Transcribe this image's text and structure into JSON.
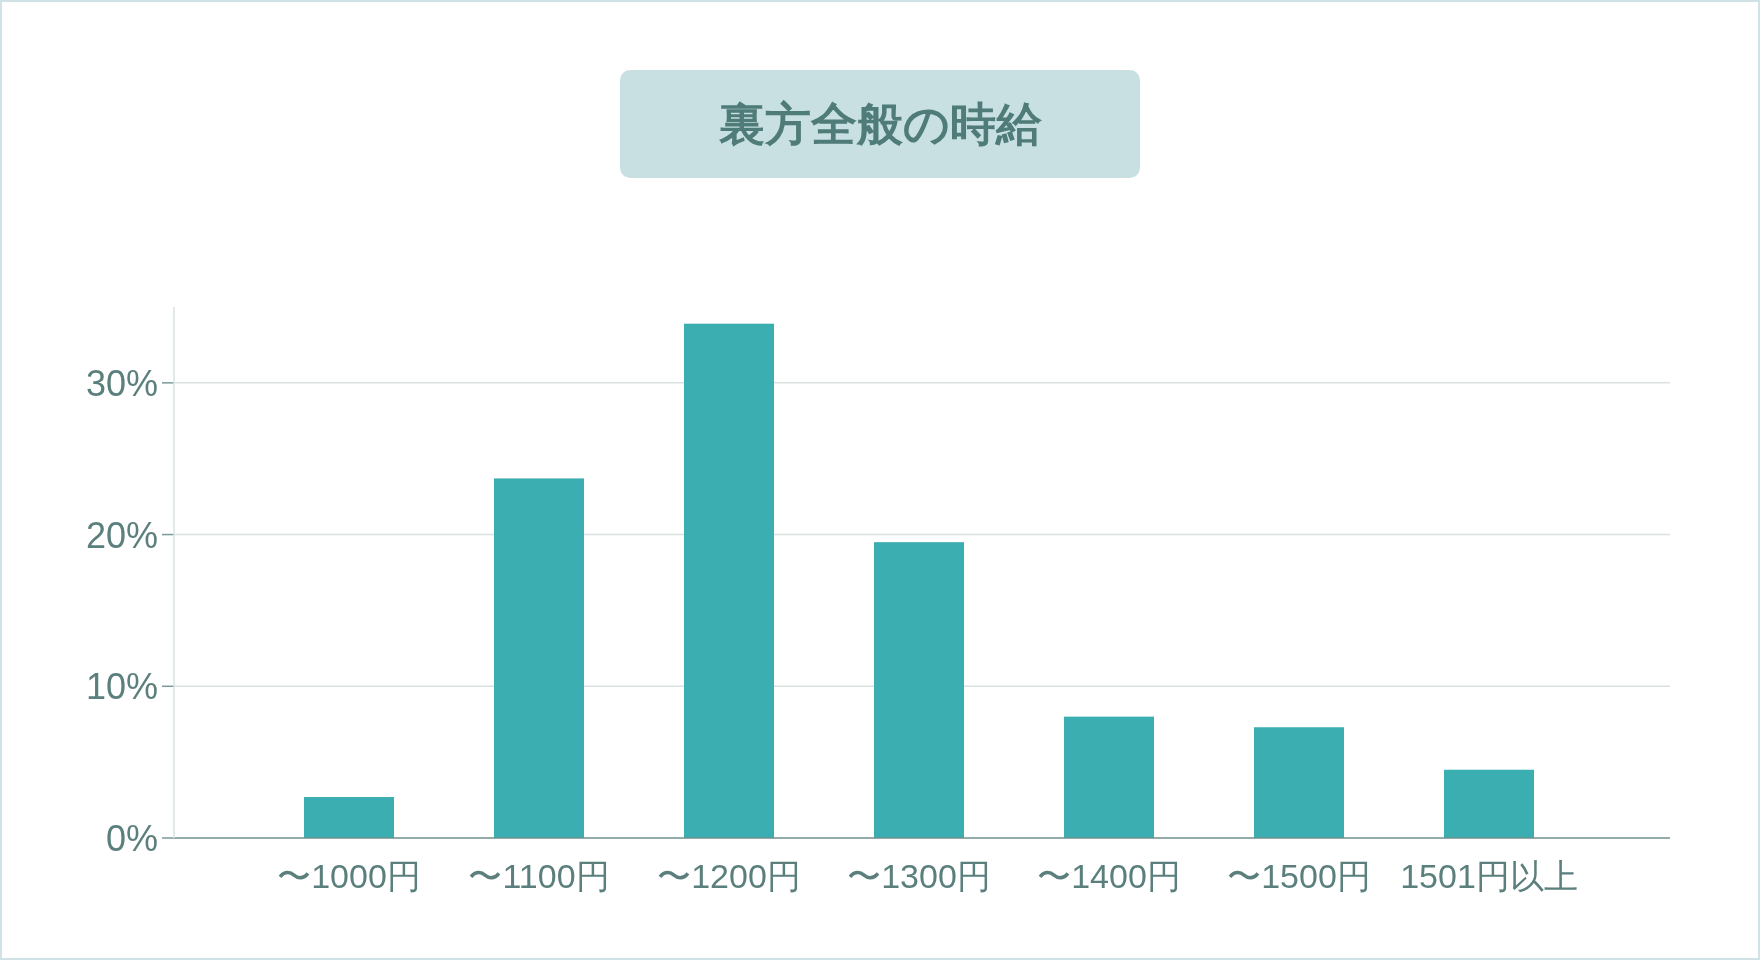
{
  "chart_data": {
    "type": "bar",
    "title": "裏方全般の時給",
    "categories": [
      "〜1000円",
      "〜1100円",
      "〜1200円",
      "〜1300円",
      "〜1400円",
      "〜1500円",
      "1501円以上"
    ],
    "values": [
      2.7,
      23.7,
      33.9,
      19.5,
      8.0,
      7.3,
      4.5
    ],
    "color": "#3aaeb1",
    "ylim": [
      0,
      35
    ],
    "yticks": [
      {
        "value": 0,
        "label": "0%"
      },
      {
        "value": 10,
        "label": "10%"
      },
      {
        "value": 20,
        "label": "20%"
      },
      {
        "value": 30,
        "label": "30%"
      }
    ],
    "grid": "y"
  }
}
